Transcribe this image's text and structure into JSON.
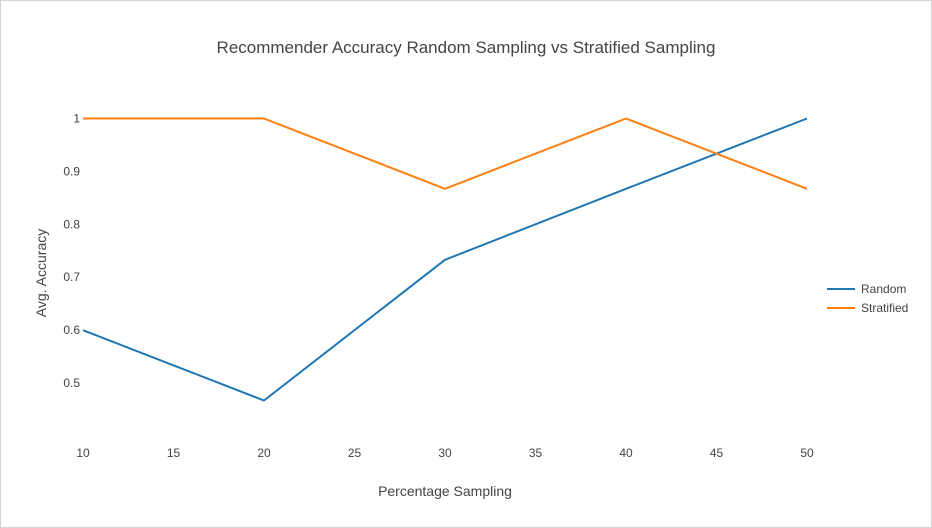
{
  "chart_data": {
    "type": "line",
    "title": "Recommender Accuracy Random Sampling vs Stratified Sampling",
    "xlabel": "Percentage Sampling",
    "ylabel": "Avg. Accuracy",
    "x": [
      10,
      20,
      30,
      40,
      50
    ],
    "xlim": [
      10,
      50
    ],
    "xticks": [
      10,
      15,
      20,
      25,
      30,
      35,
      40,
      45,
      50
    ],
    "ylim": [
      0.4,
      1.05
    ],
    "yticks": [
      0.5,
      0.6,
      0.7,
      0.8,
      0.9,
      1
    ],
    "ytick_labels": [
      "0.5",
      "0.6",
      "0.7",
      "0.8",
      "0.9",
      "1"
    ],
    "grid": false,
    "legend_position": "right",
    "series": [
      {
        "name": "Random",
        "color": "#1f77b4",
        "values": [
          0.6,
          0.467,
          0.733,
          0.867,
          1.0
        ]
      },
      {
        "name": "Stratified",
        "color": "#ff7f0e",
        "values": [
          1.0,
          1.0,
          0.867,
          1.0,
          0.867
        ]
      }
    ]
  }
}
